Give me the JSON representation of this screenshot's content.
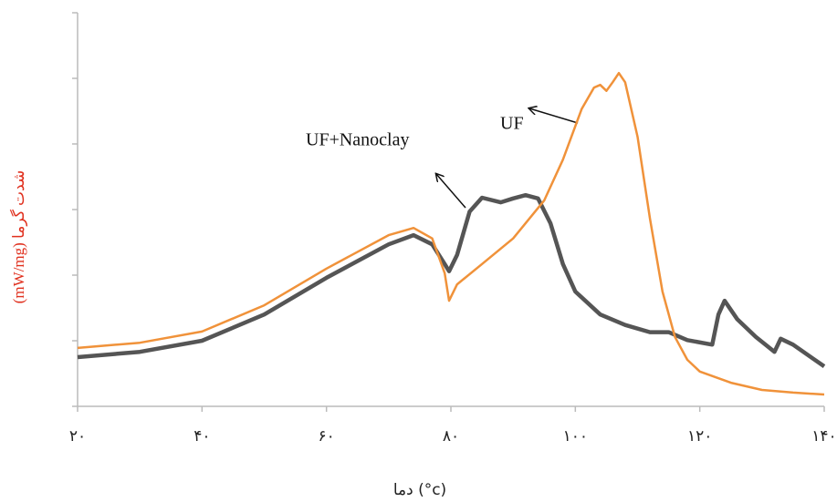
{
  "chart_data": {
    "type": "line",
    "xlabel": "دما (°c)",
    "ylabel": "(mW/mg) شدت گرما",
    "xlim": [
      20,
      140
    ],
    "xticks": [
      {
        "value": 20,
        "label": "۲۰"
      },
      {
        "value": 40,
        "label": "۴۰"
      },
      {
        "value": 60,
        "label": "۶۰"
      },
      {
        "value": 80,
        "label": "۸۰"
      },
      {
        "value": 100,
        "label": "۱۰۰"
      },
      {
        "value": 120,
        "label": "۱۲۰"
      },
      {
        "value": 140,
        "label": "۱۴۰"
      }
    ],
    "ylim": [
      0,
      6
    ],
    "yticks": [
      0,
      1,
      2,
      3,
      4,
      5,
      6
    ],
    "series": [
      {
        "name": "UF",
        "color": "#f0923a",
        "x": [
          20,
          30,
          40,
          50,
          60,
          70,
          74,
          77,
          79,
          79.7,
          81,
          85,
          90,
          95,
          98,
          101,
          103,
          104,
          105,
          106,
          107,
          108,
          110,
          112,
          114,
          116,
          118,
          120,
          125,
          130,
          135,
          140
        ],
        "values": [
          0.89,
          0.97,
          1.14,
          1.54,
          2.1,
          2.61,
          2.72,
          2.56,
          2.03,
          1.61,
          1.86,
          2.17,
          2.56,
          3.14,
          3.76,
          4.53,
          4.86,
          4.9,
          4.81,
          4.94,
          5.08,
          4.94,
          4.11,
          2.86,
          1.75,
          1.06,
          0.71,
          0.53,
          0.36,
          0.25,
          0.21,
          0.18
        ]
      },
      {
        "name": "UF+Nanoclay",
        "color": "#555555",
        "x": [
          20,
          30,
          40,
          50,
          60,
          70,
          74,
          77,
          79,
          79.7,
          81,
          83,
          85,
          88,
          90,
          92,
          94,
          96,
          98,
          100,
          104,
          108,
          112,
          115,
          118,
          122,
          123,
          124,
          126,
          129,
          132,
          133,
          135,
          138,
          140
        ],
        "values": [
          0.75,
          0.83,
          1.0,
          1.4,
          1.96,
          2.47,
          2.61,
          2.47,
          2.17,
          2.06,
          2.31,
          2.97,
          3.18,
          3.11,
          3.17,
          3.22,
          3.17,
          2.79,
          2.17,
          1.75,
          1.4,
          1.24,
          1.13,
          1.13,
          1.01,
          0.94,
          1.4,
          1.61,
          1.33,
          1.06,
          0.83,
          1.03,
          0.94,
          0.74,
          0.61
        ]
      }
    ]
  }
}
